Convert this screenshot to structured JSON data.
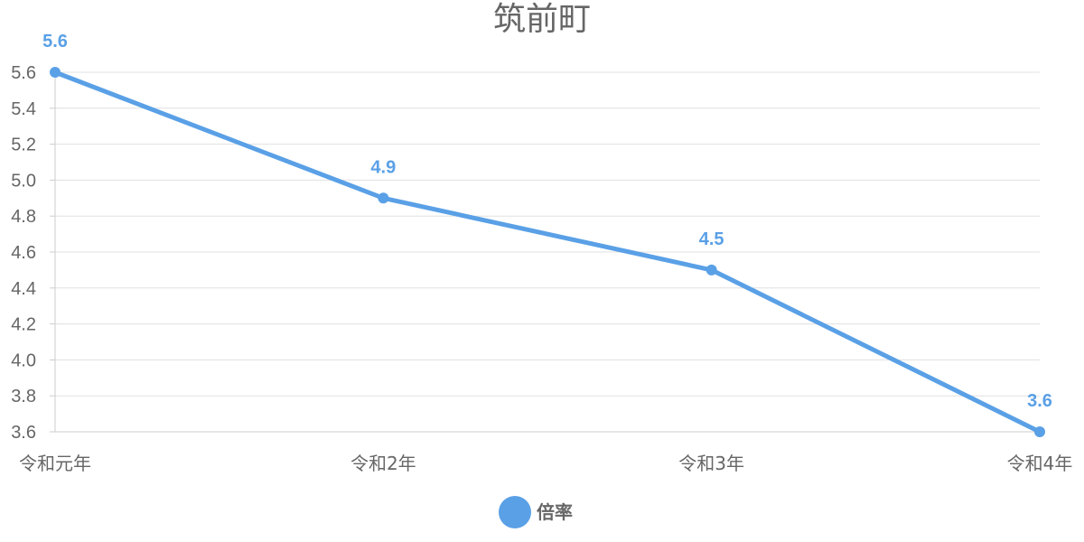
{
  "chart_data": {
    "type": "line",
    "title": "筑前町",
    "xlabel": "",
    "ylabel": "",
    "categories": [
      "令和元年",
      "令和2年",
      "令和3年",
      "令和4年"
    ],
    "series": [
      {
        "name": "倍率",
        "values": [
          5.6,
          4.9,
          4.5,
          3.6
        ]
      }
    ],
    "data_labels": [
      "5.6",
      "4.9",
      "4.5",
      "3.6"
    ],
    "ylim": [
      3.6,
      5.6
    ],
    "yticks": [
      {
        "value": 3.6,
        "label": "3.6"
      },
      {
        "value": 3.8,
        "label": "3.8"
      },
      {
        "value": 4.0,
        "label": "4.0"
      },
      {
        "value": 4.2,
        "label": "4.2"
      },
      {
        "value": 4.4,
        "label": "4.4"
      },
      {
        "value": 4.6,
        "label": "4.6"
      },
      {
        "value": 4.8,
        "label": "4.8"
      },
      {
        "value": 5.0,
        "label": "5.0"
      },
      {
        "value": 5.2,
        "label": "5.2"
      },
      {
        "value": 5.4,
        "label": "5.4"
      },
      {
        "value": 5.6,
        "label": "5.6"
      }
    ],
    "grid": true,
    "legend_position": "bottom-center",
    "colors": {
      "series": "#5aa0e6",
      "grid": "#e0e0e0",
      "axis": "#cccccc",
      "text": "#666666"
    }
  }
}
